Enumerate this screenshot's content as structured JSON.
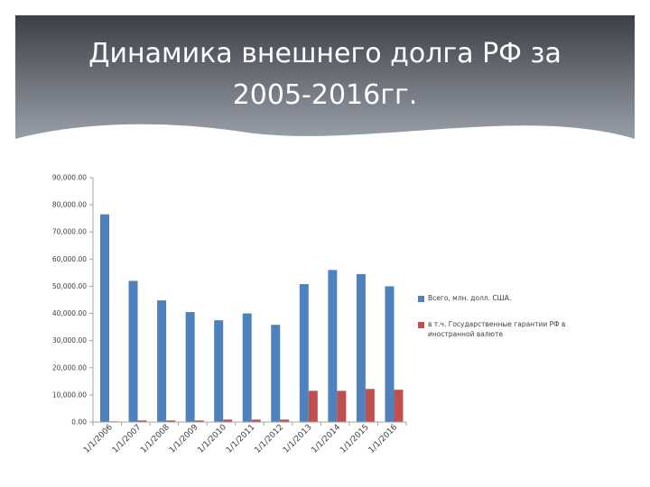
{
  "slide": {
    "title": "Динамика внешнего долга РФ за 2005-2016гг."
  },
  "colors": {
    "header_dark": "#3b3f47",
    "header_light": "#9aa0aa",
    "series_total": "#4f81bd",
    "series_gov": "#c0504d",
    "axis": "#a6a6a6",
    "text": "#404040"
  },
  "chart_data": {
    "type": "bar",
    "title": "",
    "xlabel": "",
    "ylabel": "",
    "categories": [
      "1/1/2006",
      "1/1/2007",
      "1/1/2008",
      "1/1/2009",
      "1/1/2010",
      "1/1/2011",
      "1/1/2012",
      "1/1/2013",
      "1/1/2014",
      "1/1/2015",
      "1/1/2016"
    ],
    "series": [
      {
        "name": "Всего, млн. долл. США.",
        "values": [
          76500,
          52000,
          44800,
          40500,
          37500,
          40000,
          35800,
          50800,
          56000,
          54500,
          50000
        ]
      },
      {
        "name": "в т.ч. Государственные гарантии РФ в иностранной валюте",
        "values": [
          200,
          600,
          600,
          600,
          900,
          900,
          900,
          11500,
          11500,
          12200,
          11900
        ]
      }
    ],
    "ylim": [
      0,
      90000
    ],
    "yticks": [
      "0.00",
      "10,000.00",
      "20,000.00",
      "30,000.00",
      "40,000.00",
      "50,000.00",
      "60,000.00",
      "70,000.00",
      "80,000.00",
      "90,000.00"
    ],
    "grid": false,
    "legend_position": "right"
  }
}
